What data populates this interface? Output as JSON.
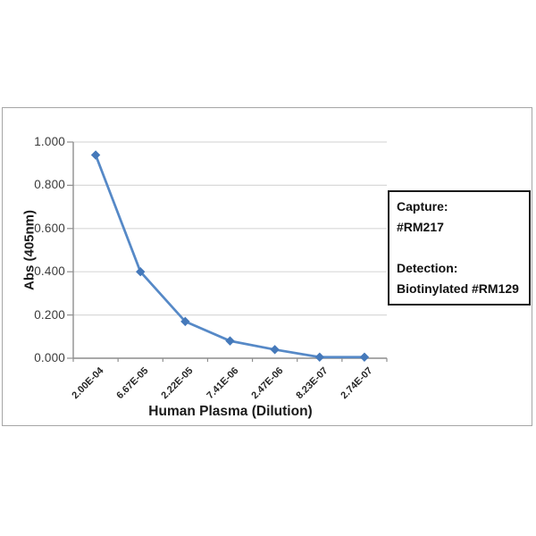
{
  "chart_data": {
    "type": "line",
    "title": "",
    "xlabel": "Human Plasma (Dilution)",
    "ylabel": "Abs (405nm)",
    "categories": [
      "2.00E-04",
      "6.67E-05",
      "2.22E-05",
      "7.41E-06",
      "2.47E-06",
      "8.23E-07",
      "2.74E-07"
    ],
    "series": [
      {
        "name": "Abs (405nm)",
        "values": [
          0.94,
          0.4,
          0.17,
          0.08,
          0.04,
          0.005,
          0.005
        ]
      }
    ],
    "ylim": [
      0,
      1.0
    ],
    "y_ticks": [
      {
        "value": 1.0,
        "label": "1.000"
      },
      {
        "value": 0.8,
        "label": "0.800"
      },
      {
        "value": 0.6,
        "label": "0.600"
      },
      {
        "value": 0.4,
        "label": "0.400"
      },
      {
        "value": 0.2,
        "label": "0.200"
      },
      {
        "value": 0.0,
        "label": "0.000"
      }
    ],
    "grid": "horizontal",
    "legend": "none",
    "marker": "diamond"
  },
  "annotation": {
    "capture_label": "Capture:",
    "capture_value": "#RM217",
    "detection_label": "Detection:",
    "detection_value": "Biotinylated #RM129"
  },
  "colors": {
    "line": "#5689c7",
    "marker": "#4579ba",
    "grid": "#d9d9d9",
    "axis": "#8f8f8f",
    "frame": "#a6a6a6",
    "tick_label": "#3b3b3b",
    "annotation_border": "#1a1a1a"
  }
}
